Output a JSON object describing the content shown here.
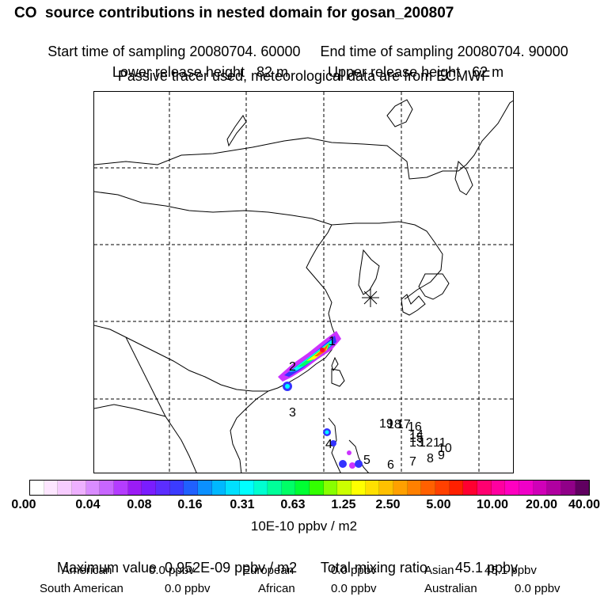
{
  "header": {
    "title": "CO  source contributions in nested domain for gosan_200807",
    "start_time": "Start time of sampling 20080704. 60000",
    "end_time": "End time of sampling 20080704. 90000",
    "lower_release": "Lower release height   82 m",
    "upper_release": "Upper release height   62 m",
    "tracer_note": "Passive tracer used, meteorological data are from ECMWF"
  },
  "map": {
    "station_marker": "gosan-station-asterisk",
    "trajectory_labels": [
      "1",
      "2",
      "3",
      "4",
      "5",
      "6",
      "7",
      "8",
      "9",
      "10",
      "11",
      "12",
      "13",
      "14",
      "15",
      "16",
      "17",
      "18",
      "19"
    ],
    "plume_colors": [
      "#cc33ff",
      "#3333ff",
      "#00ffff",
      "#00ff66",
      "#ffff00",
      "#ff6600",
      "#ff0033"
    ]
  },
  "colorbar": {
    "ticks": [
      "0.00",
      "0.04",
      "0.08",
      "0.16",
      "0.31",
      "0.63",
      "1.25",
      "2.50",
      "5.00",
      "10.00",
      "20.00",
      "40.00"
    ],
    "colors": [
      "#ffffff",
      "#fde6ff",
      "#f7ccff",
      "#eeb0ff",
      "#d98cff",
      "#c866ff",
      "#b43cff",
      "#9b1cf5",
      "#7a1dff",
      "#5c2dff",
      "#3b3bff",
      "#2060ff",
      "#0b90ff",
      "#00b8ff",
      "#00e0ff",
      "#00ffff",
      "#00ffd0",
      "#00ff99",
      "#00ff66",
      "#00ff33",
      "#33ff00",
      "#88ff00",
      "#ccff00",
      "#ffff00",
      "#ffe000",
      "#ffc000",
      "#ffa000",
      "#ff8000",
      "#ff6000",
      "#ff4000",
      "#ff2000",
      "#ff0030",
      "#ff0070",
      "#ff00a0",
      "#ff00c0",
      "#f000c8",
      "#d000b8",
      "#b000a0",
      "#900088",
      "#600060"
    ]
  },
  "summary": {
    "units": "10E-10 ppbv / m2",
    "max_value": "Maximum value  0.952E-09 ppbv / m2",
    "total_mixing": "Total mixing ratio       45.1 ppbv",
    "american_label": "American",
    "american_value": "0.0 ppbv",
    "european_label": "European",
    "european_value": "0.0 ppbv",
    "asian_label": "Asian",
    "asian_value": "45.1 ppbv",
    "south_american_label": "South American",
    "south_american_value": "0.0 ppbv",
    "african_label": "African",
    "african_value": "0.0 ppbv",
    "australian_label": "Australian",
    "australian_value": "0.0 ppbv"
  }
}
